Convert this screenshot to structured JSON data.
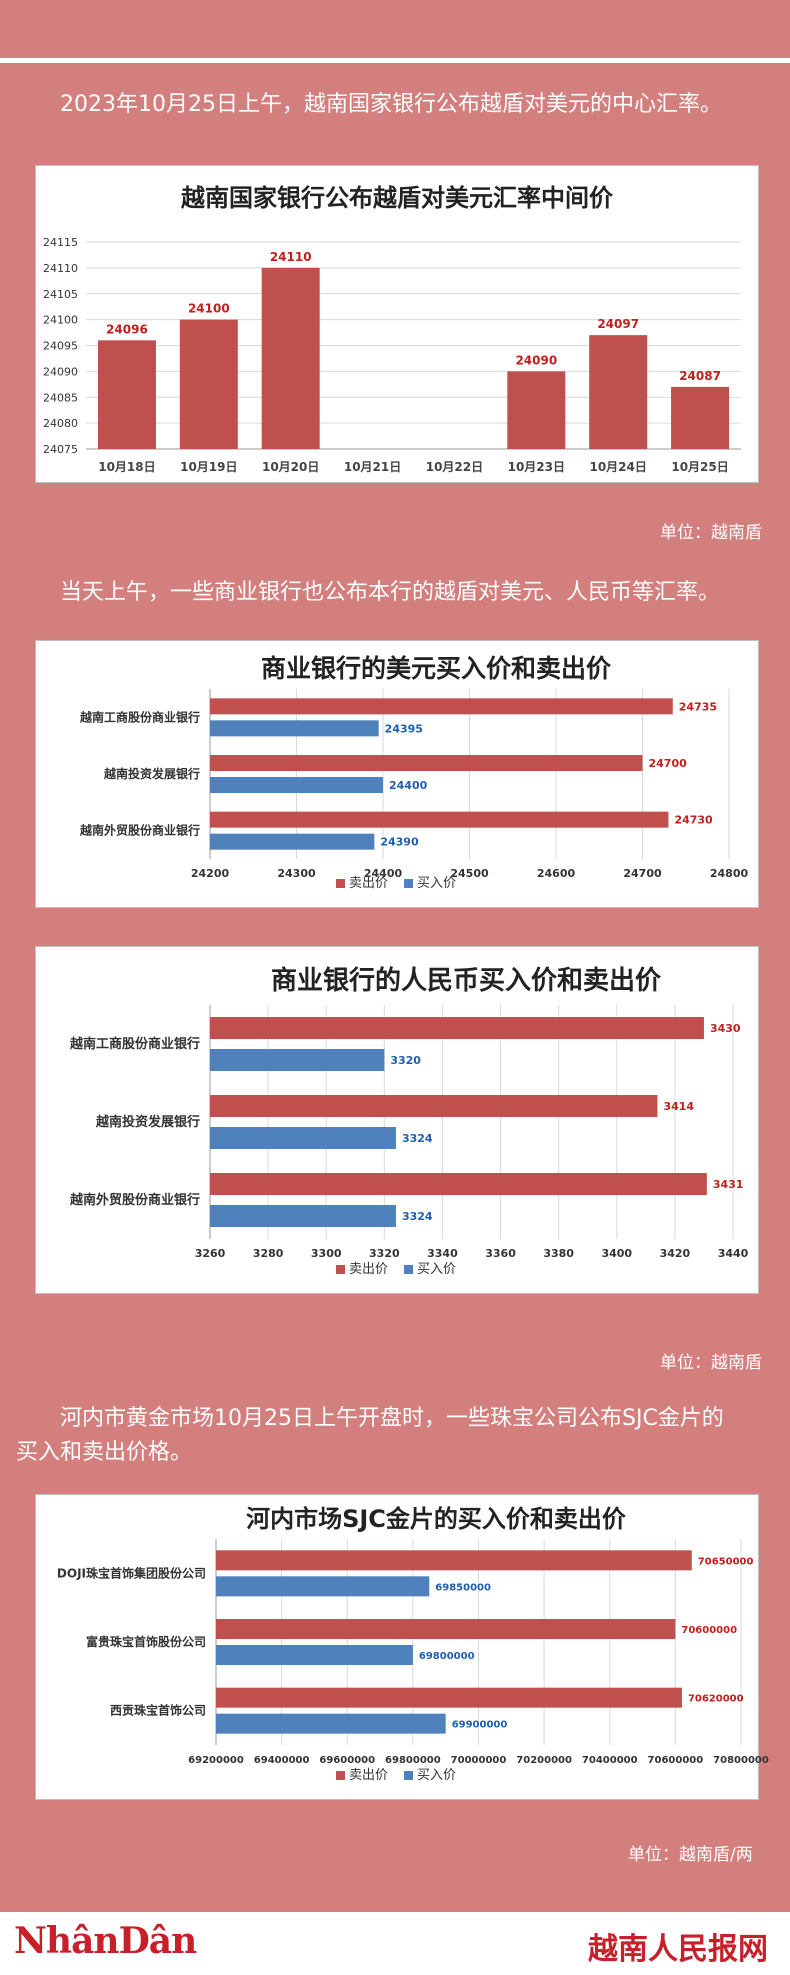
{
  "intro1": "2023年10月25日上午，越南国家银行公布越盾对美元的中心汇率。",
  "unit1": "单位：越南盾",
  "intro2": "当天上午，一些商业银行也公布本行的越盾对美元、人民币等汇率。",
  "unit2": "单位：越南盾",
  "intro3_line1": "河内市黄金市场10月25日上午开盘时，一些珠宝公司公布SJC金片的",
  "intro3_line2": "买入和卖出价格。",
  "unit3": "单位：越南盾/两",
  "footer": {
    "logo_left": "NhânDân",
    "logo_right": "越南人民报网"
  },
  "colors": {
    "sell": "#c0504d",
    "buy": "#4f81bd",
    "label_sell": "#c0201e",
    "label_buy": "#1f5fad"
  },
  "chart_data": [
    {
      "type": "bar",
      "title": "越南国家银行公布越盾对美元汇率中间价",
      "categories": [
        "10月18日",
        "10月19日",
        "10月20日",
        "10月21日",
        "10月22日",
        "10月23日",
        "10月24日",
        "10月25日"
      ],
      "values": [
        24096,
        24100,
        24110,
        null,
        null,
        24090,
        24097,
        24087
      ],
      "ylim": [
        24075,
        24115
      ],
      "yticks": [
        24075,
        24080,
        24085,
        24090,
        24095,
        24100,
        24105,
        24110,
        24115
      ],
      "grid": true
    },
    {
      "type": "bar",
      "orientation": "horizontal",
      "title": "商业银行的美元买入价和卖出价",
      "categories": [
        "越南工商股份商业银行",
        "越南投资发展银行",
        "越南外贸股份商业银行"
      ],
      "series": [
        {
          "name": "卖出价",
          "values": [
            24735,
            24700,
            24730
          ]
        },
        {
          "name": "买入价",
          "values": [
            24395,
            24400,
            24390
          ]
        }
      ],
      "xlim": [
        24200,
        24800
      ],
      "xticks": [
        24200,
        24300,
        24400,
        24500,
        24600,
        24700,
        24800
      ],
      "legend": "bottom",
      "grid": true
    },
    {
      "type": "bar",
      "orientation": "horizontal",
      "title": "商业银行的人民币买入价和卖出价",
      "categories": [
        "越南工商股份商业银行",
        "越南投资发展银行",
        "越南外贸股份商业银行"
      ],
      "series": [
        {
          "name": "卖出价",
          "values": [
            3430,
            3414,
            3431
          ]
        },
        {
          "name": "买入价",
          "values": [
            3320,
            3324,
            3324
          ]
        }
      ],
      "xlim": [
        3260,
        3440
      ],
      "xticks": [
        3260,
        3280,
        3300,
        3320,
        3340,
        3360,
        3380,
        3400,
        3420,
        3440
      ],
      "legend": "bottom",
      "grid": true
    },
    {
      "type": "bar",
      "orientation": "horizontal",
      "title": "河内市场SJC金片的买入价和卖出价",
      "categories": [
        "DOJI珠宝首饰集团股份公司",
        "富贵珠宝首饰股份公司",
        "西贡珠宝首饰公司"
      ],
      "series": [
        {
          "name": "卖出价",
          "values": [
            70650000,
            70600000,
            70620000
          ]
        },
        {
          "name": "买入价",
          "values": [
            69850000,
            69800000,
            69900000
          ]
        }
      ],
      "xlim": [
        69200000,
        70800000
      ],
      "xticks": [
        69200000,
        69400000,
        69600000,
        69800000,
        70000000,
        70200000,
        70400000,
        70600000,
        70800000
      ],
      "legend": "bottom",
      "grid": true
    }
  ]
}
